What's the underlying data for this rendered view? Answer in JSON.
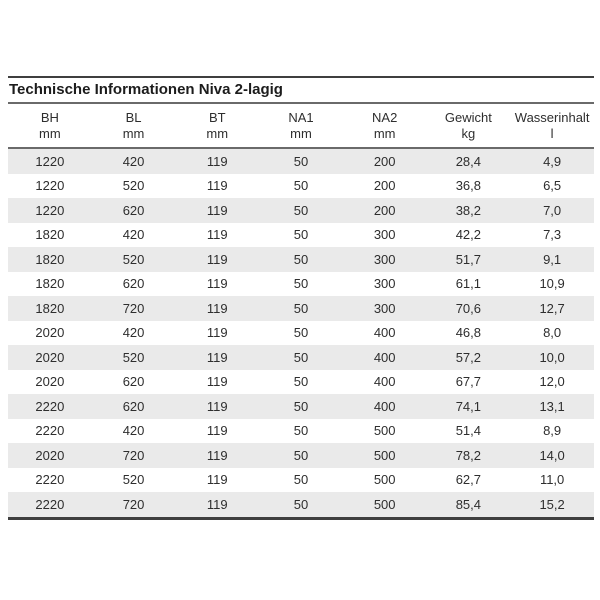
{
  "title": "Technische Informationen Niva 2-lagig",
  "columns": [
    {
      "label": "BH",
      "unit": "mm"
    },
    {
      "label": "BL",
      "unit": "mm"
    },
    {
      "label": "BT",
      "unit": "mm"
    },
    {
      "label": "NA1",
      "unit": "mm"
    },
    {
      "label": "NA2",
      "unit": "mm"
    },
    {
      "label": "Gewicht",
      "unit": "kg"
    },
    {
      "label": "Wasserinhalt",
      "unit": "l"
    }
  ],
  "rows": [
    [
      "1220",
      "420",
      "119",
      "50",
      "200",
      "28,4",
      "4,9"
    ],
    [
      "1220",
      "520",
      "119",
      "50",
      "200",
      "36,8",
      "6,5"
    ],
    [
      "1220",
      "620",
      "119",
      "50",
      "200",
      "38,2",
      "7,0"
    ],
    [
      "1820",
      "420",
      "119",
      "50",
      "300",
      "42,2",
      "7,3"
    ],
    [
      "1820",
      "520",
      "119",
      "50",
      "300",
      "51,7",
      "9,1"
    ],
    [
      "1820",
      "620",
      "119",
      "50",
      "300",
      "61,1",
      "10,9"
    ],
    [
      "1820",
      "720",
      "119",
      "50",
      "300",
      "70,6",
      "12,7"
    ],
    [
      "2020",
      "420",
      "119",
      "50",
      "400",
      "46,8",
      "8,0"
    ],
    [
      "2020",
      "520",
      "119",
      "50",
      "400",
      "57,2",
      "10,0"
    ],
    [
      "2020",
      "620",
      "119",
      "50",
      "400",
      "67,7",
      "12,0"
    ],
    [
      "2220",
      "620",
      "119",
      "50",
      "400",
      "74,1",
      "13,1"
    ],
    [
      "2220",
      "420",
      "119",
      "50",
      "500",
      "51,4",
      "8,9"
    ],
    [
      "2020",
      "720",
      "119",
      "50",
      "500",
      "78,2",
      "14,0"
    ],
    [
      "2220",
      "520",
      "119",
      "50",
      "500",
      "62,7",
      "11,0"
    ],
    [
      "2220",
      "720",
      "119",
      "50",
      "500",
      "85,4",
      "15,2"
    ]
  ],
  "colors": {
    "stripe": "#eaeaea",
    "rule_dark": "#3f3f3f",
    "rule_mid": "#6a6a6a",
    "text": "#2e2e2e",
    "title_text": "#1c1c1c",
    "background": "#ffffff"
  }
}
